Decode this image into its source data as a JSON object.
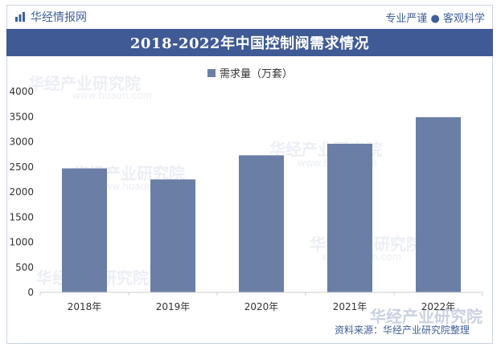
{
  "header": {
    "brand": "华经情报网",
    "slogan": "专业严谨 ● 客观科学"
  },
  "chart_data": {
    "type": "bar",
    "title": "2018-2022年中国控制阀需求情况",
    "categories": [
      "2018年",
      "2019年",
      "2020年",
      "2021年",
      "2022年"
    ],
    "series": [
      {
        "name": "需求量（万套）",
        "values": [
          2470,
          2250,
          2730,
          2960,
          3490
        ]
      }
    ],
    "ylim": [
      0,
      4000
    ],
    "yticks": [
      0,
      500,
      1000,
      1500,
      2000,
      2500,
      3000,
      3500,
      4000
    ],
    "legend_position": "top-center",
    "grid": false,
    "bar_color": "#6b7ea6"
  },
  "footer": {
    "source": "资料来源：华经产业研究院整理"
  },
  "watermark": {
    "text": "华经产业研究院",
    "text_en": "www.huaon.com"
  },
  "colors": {
    "accent": "#3f5a95",
    "bar": "#6b7ea6"
  }
}
